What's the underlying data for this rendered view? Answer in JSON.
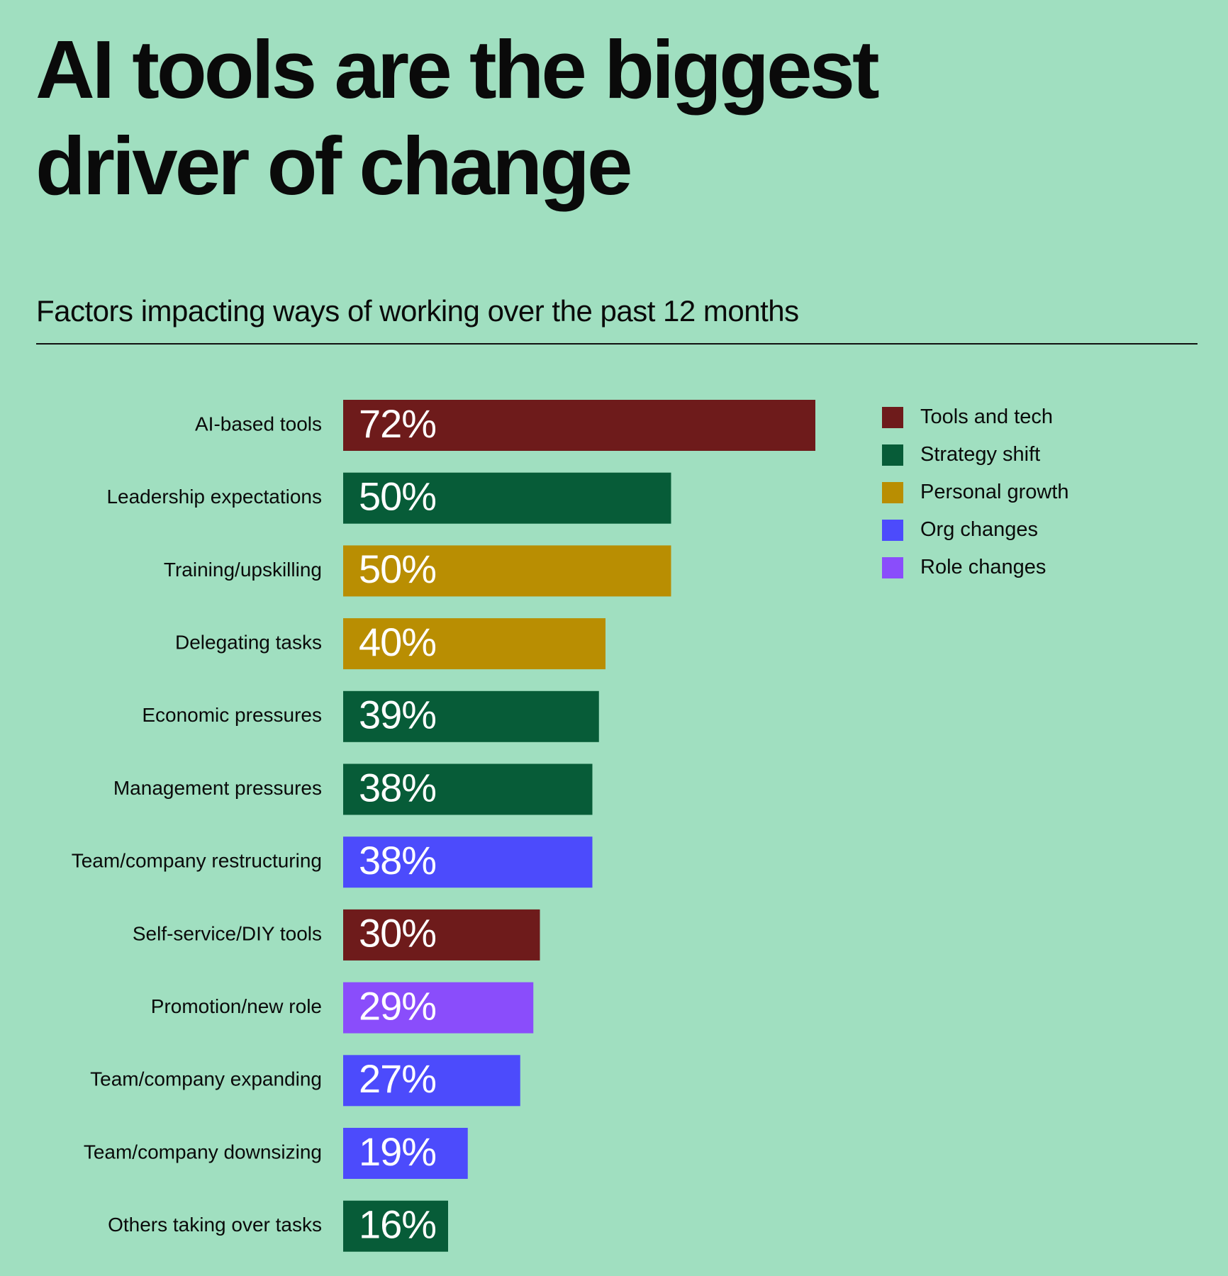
{
  "headline": {
    "line1": "AI tools are the biggest",
    "line2": "driver of change"
  },
  "chart_data": {
    "type": "bar",
    "orientation": "horizontal",
    "title": "Factors impacting ways of working over the past 12 months",
    "categories": [
      "AI-based tools",
      "Leadership expectations",
      "Training/upskilling",
      "Delegating tasks",
      "Economic pressures",
      "Management pressures",
      "Team/company restructuring",
      "Self-service/DIY tools",
      "Promotion/new role",
      "Team/company expanding",
      "Team/company downsizing",
      "Others taking over tasks"
    ],
    "values": [
      72,
      50,
      50,
      40,
      39,
      38,
      38,
      30,
      29,
      27,
      19,
      16
    ],
    "value_labels": [
      "72%",
      "50%",
      "50%",
      "40%",
      "39%",
      "38%",
      "38%",
      "30%",
      "29%",
      "27%",
      "19%",
      "16%"
    ],
    "groups": [
      "Tools and tech",
      "Strategy shift",
      "Personal growth",
      "Personal growth",
      "Strategy shift",
      "Strategy shift",
      "Org changes",
      "Tools and tech",
      "Role changes",
      "Org changes",
      "Org changes",
      "Strategy shift"
    ],
    "legend": [
      {
        "name": "Tools and tech",
        "color": "#6e1b1b"
      },
      {
        "name": "Strategy shift",
        "color": "#075c38"
      },
      {
        "name": "Personal growth",
        "color": "#b98e02"
      },
      {
        "name": "Org changes",
        "color": "#4c4bfc"
      },
      {
        "name": "Role changes",
        "color": "#8a4dfb"
      }
    ],
    "legend_position": "top-right",
    "value_unit": "%",
    "xlim": [
      0,
      100
    ],
    "grid": false
  }
}
